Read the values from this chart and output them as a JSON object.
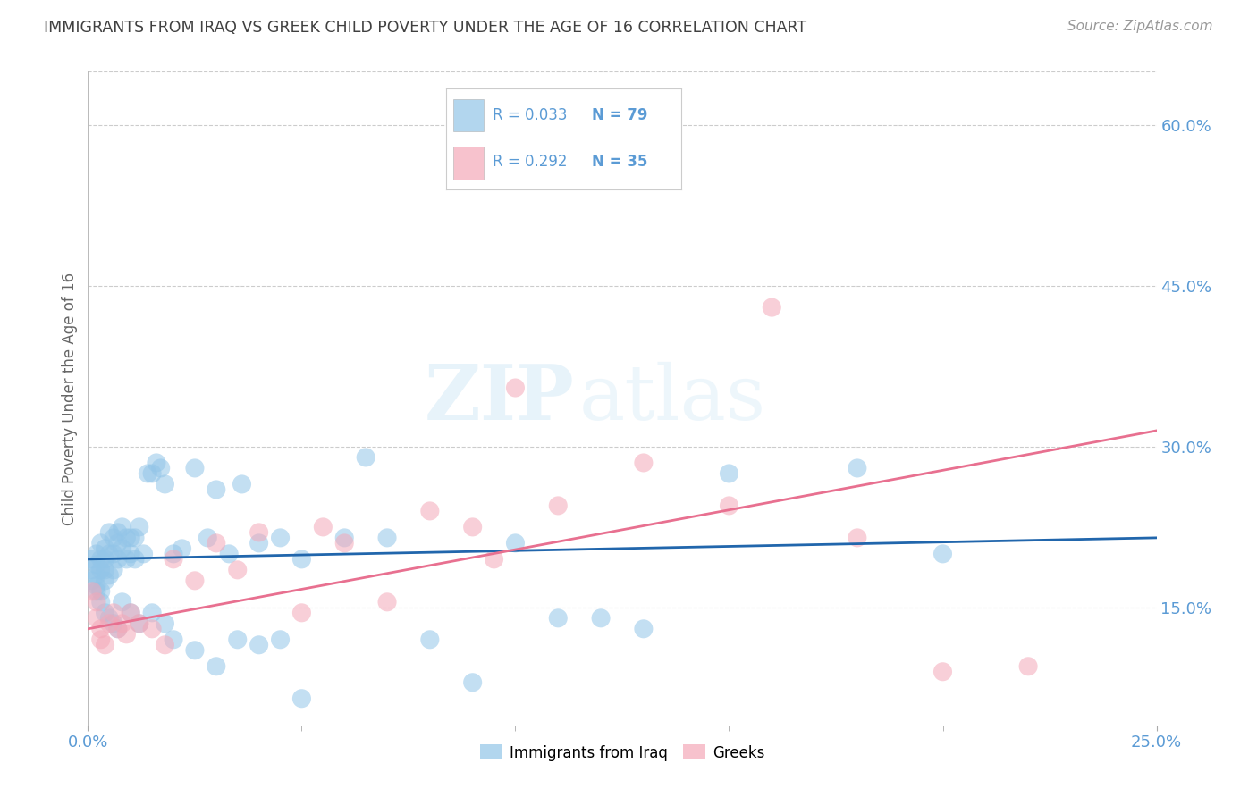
{
  "title": "IMMIGRANTS FROM IRAQ VS GREEK CHILD POVERTY UNDER THE AGE OF 16 CORRELATION CHART",
  "source": "Source: ZipAtlas.com",
  "ylabel": "Child Poverty Under the Age of 16",
  "ytick_labels": [
    "15.0%",
    "30.0%",
    "45.0%",
    "60.0%"
  ],
  "ytick_values": [
    0.15,
    0.3,
    0.45,
    0.6
  ],
  "xlim": [
    0.0,
    0.25
  ],
  "ylim": [
    0.04,
    0.65
  ],
  "legend_r1": "R = 0.033",
  "legend_n1": "N = 79",
  "legend_r2": "R = 0.292",
  "legend_n2": "N = 35",
  "color_iraq": "#92c5e8",
  "color_greeks": "#f4a8b8",
  "trendline_iraq_color": "#2166ac",
  "trendline_greeks_color": "#e87090",
  "background_color": "#ffffff",
  "grid_color": "#cccccc",
  "axis_label_color": "#5b9bd5",
  "title_color": "#404040",
  "watermark_zip": "ZIP",
  "watermark_atlas": "atlas",
  "iraq_trendline_x": [
    0.0,
    0.25
  ],
  "iraq_trendline_y": [
    0.195,
    0.215
  ],
  "greeks_trendline_x": [
    0.0,
    0.25
  ],
  "greeks_trendline_y": [
    0.13,
    0.315
  ],
  "iraq_x": [
    0.001,
    0.001,
    0.001,
    0.002,
    0.002,
    0.002,
    0.002,
    0.003,
    0.003,
    0.003,
    0.003,
    0.004,
    0.004,
    0.004,
    0.004,
    0.005,
    0.005,
    0.005,
    0.006,
    0.006,
    0.006,
    0.007,
    0.007,
    0.007,
    0.008,
    0.008,
    0.009,
    0.009,
    0.01,
    0.01,
    0.011,
    0.011,
    0.012,
    0.013,
    0.014,
    0.015,
    0.016,
    0.017,
    0.018,
    0.02,
    0.022,
    0.025,
    0.028,
    0.03,
    0.033,
    0.036,
    0.04,
    0.045,
    0.05,
    0.06,
    0.065,
    0.07,
    0.08,
    0.09,
    0.1,
    0.11,
    0.12,
    0.13,
    0.15,
    0.18,
    0.002,
    0.003,
    0.004,
    0.005,
    0.006,
    0.007,
    0.008,
    0.01,
    0.012,
    0.015,
    0.018,
    0.02,
    0.025,
    0.03,
    0.035,
    0.04,
    0.045,
    0.05,
    0.2
  ],
  "iraq_y": [
    0.195,
    0.185,
    0.175,
    0.2,
    0.19,
    0.18,
    0.17,
    0.21,
    0.195,
    0.185,
    0.165,
    0.205,
    0.195,
    0.185,
    0.175,
    0.22,
    0.2,
    0.18,
    0.215,
    0.2,
    0.185,
    0.22,
    0.21,
    0.195,
    0.225,
    0.205,
    0.215,
    0.195,
    0.215,
    0.2,
    0.215,
    0.195,
    0.225,
    0.2,
    0.275,
    0.275,
    0.285,
    0.28,
    0.265,
    0.2,
    0.205,
    0.28,
    0.215,
    0.26,
    0.2,
    0.265,
    0.21,
    0.215,
    0.195,
    0.215,
    0.29,
    0.215,
    0.12,
    0.08,
    0.21,
    0.14,
    0.14,
    0.13,
    0.275,
    0.28,
    0.165,
    0.155,
    0.145,
    0.14,
    0.135,
    0.13,
    0.155,
    0.145,
    0.135,
    0.145,
    0.135,
    0.12,
    0.11,
    0.095,
    0.12,
    0.115,
    0.12,
    0.065,
    0.2
  ],
  "greeks_x": [
    0.001,
    0.002,
    0.002,
    0.003,
    0.003,
    0.004,
    0.005,
    0.006,
    0.007,
    0.008,
    0.009,
    0.01,
    0.012,
    0.015,
    0.018,
    0.02,
    0.025,
    0.03,
    0.035,
    0.04,
    0.05,
    0.055,
    0.06,
    0.07,
    0.08,
    0.09,
    0.095,
    0.1,
    0.11,
    0.13,
    0.15,
    0.16,
    0.18,
    0.2,
    0.22
  ],
  "greeks_y": [
    0.165,
    0.155,
    0.14,
    0.13,
    0.12,
    0.115,
    0.135,
    0.145,
    0.13,
    0.135,
    0.125,
    0.145,
    0.135,
    0.13,
    0.115,
    0.195,
    0.175,
    0.21,
    0.185,
    0.22,
    0.145,
    0.225,
    0.21,
    0.155,
    0.24,
    0.225,
    0.195,
    0.355,
    0.245,
    0.285,
    0.245,
    0.43,
    0.215,
    0.09,
    0.095
  ]
}
